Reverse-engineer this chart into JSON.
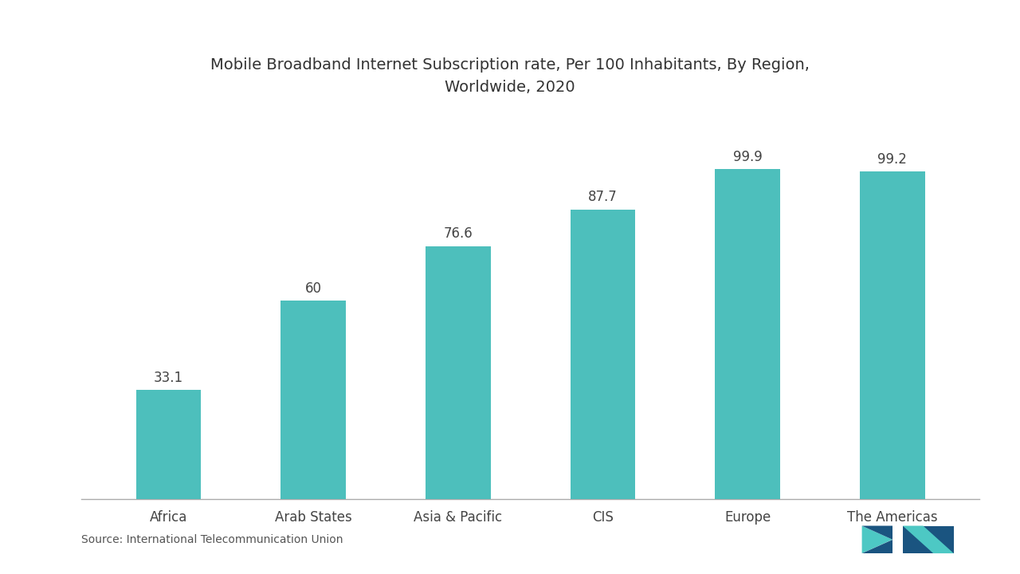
{
  "title": "Mobile Broadband Internet Subscription rate, Per 100 Inhabitants, By Region,\nWorldwide, 2020",
  "categories": [
    "Africa",
    "Arab States",
    "Asia & Pacific",
    "CIS",
    "Europe",
    "The Americas"
  ],
  "values": [
    33.1,
    60,
    76.6,
    87.7,
    99.9,
    99.2
  ],
  "bar_color": "#4DBFBC",
  "bar_width": 0.45,
  "title_fontsize": 14,
  "tick_fontsize": 12,
  "value_fontsize": 12,
  "source_text": "Source: International Telecommunication Union",
  "background_color": "#ffffff",
  "ylim": [
    0,
    118
  ],
  "logo_teal": "#4DC8C4",
  "logo_blue": "#2176AE",
  "logo_dark": "#1a5480"
}
